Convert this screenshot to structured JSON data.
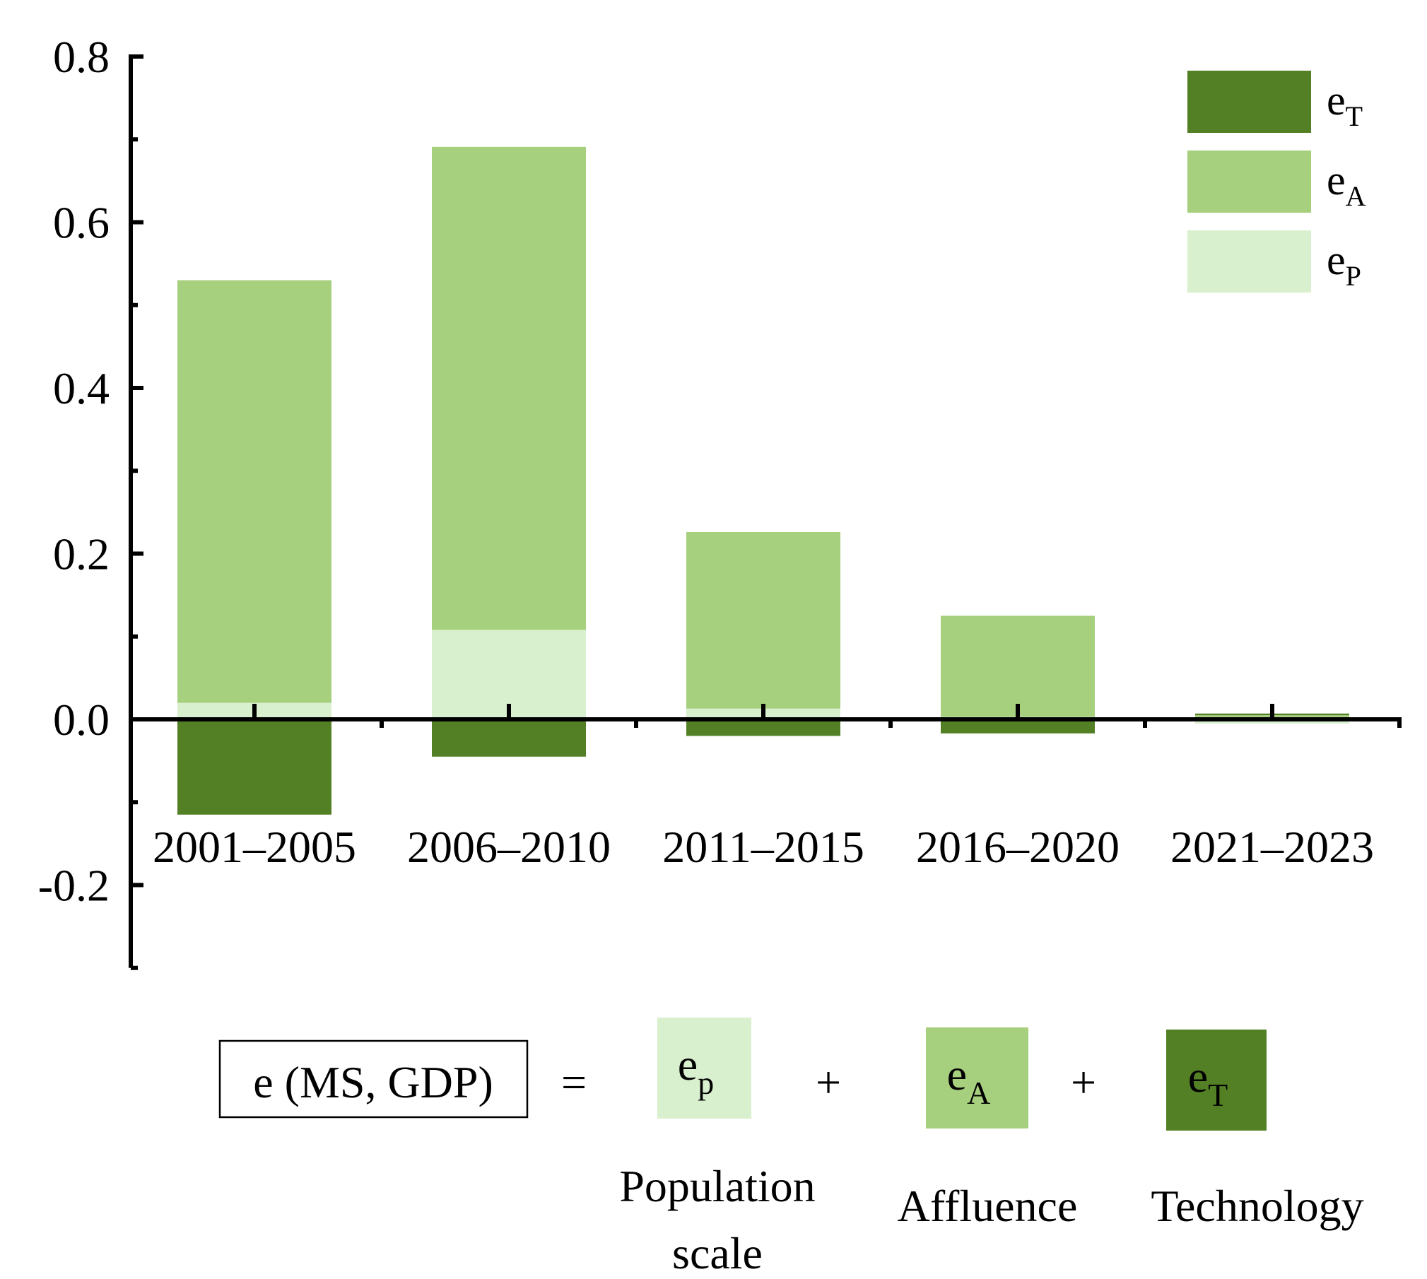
{
  "chart_data": {
    "type": "bar",
    "stacked": true,
    "categories": [
      "2001–2005",
      "2006–2010",
      "2011–2015",
      "2016–2020",
      "2021–2023"
    ],
    "series": [
      {
        "name": "eP",
        "label_base": "e",
        "label_sub": "P",
        "color": "#d9f0ce",
        "values": [
          0.02,
          0.108,
          0.013,
          0.003,
          -0.005
        ]
      },
      {
        "name": "eA",
        "label_base": "e",
        "label_sub": "A",
        "color": "#a6d07d",
        "values": [
          0.51,
          0.583,
          0.213,
          0.122,
          0.005
        ]
      },
      {
        "name": "eT",
        "label_base": "e",
        "label_sub": "T",
        "color": "#548025",
        "values": [
          -0.115,
          -0.045,
          -0.02,
          -0.017,
          0.002
        ]
      }
    ],
    "ylim": [
      -0.3,
      0.8
    ],
    "yticks": [
      -0.2,
      0.0,
      0.2,
      0.4,
      0.6,
      0.8
    ],
    "ytick_labels": [
      "-0.2",
      "0.0",
      "0.2",
      "0.4",
      "0.6",
      "0.8"
    ],
    "title": "",
    "xlabel": "",
    "ylabel": "",
    "legend_position": "top-right",
    "grid": false
  },
  "formula": {
    "lhs": "e (MS, GDP)",
    "equals": "=",
    "plus": "+",
    "terms": [
      {
        "base": "e",
        "sub": "p",
        "color": "#d9f0ce",
        "caption": [
          "Population",
          "scale"
        ]
      },
      {
        "base": "e",
        "sub": "A",
        "color": "#a6d07d",
        "caption": [
          "Affluence"
        ]
      },
      {
        "base": "e",
        "sub": "T",
        "color": "#548025",
        "caption": [
          "Technology"
        ]
      }
    ]
  }
}
